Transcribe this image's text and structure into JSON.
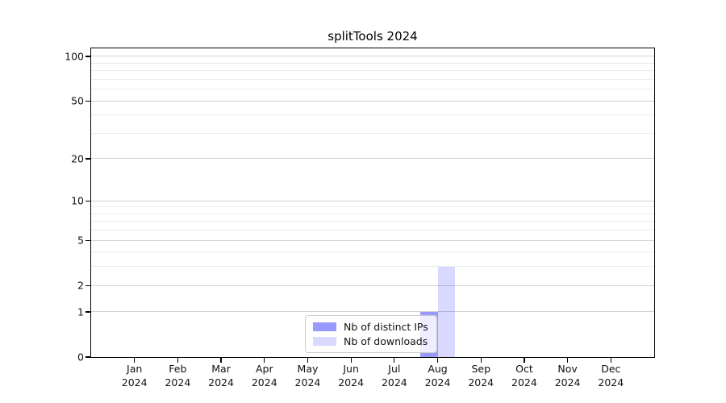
{
  "title": "splitTools 2024",
  "colors": {
    "background": "#ffffff",
    "axis": "#000000",
    "grid_major": "#d2d2d2",
    "grid_minor": "#ececec",
    "legend_border": "#cccccc",
    "bar_distinct_ips": "rgba(0,0,255,0.4)",
    "bar_downloads": "rgba(0,0,255,0.15)"
  },
  "chart_data": {
    "type": "bar",
    "title": "splitTools 2024",
    "categories": [
      "Jan 2024",
      "Feb 2024",
      "Mar 2024",
      "Apr 2024",
      "May 2024",
      "Jun 2024",
      "Jul 2024",
      "Aug 2024",
      "Sep 2024",
      "Oct 2024",
      "Nov 2024",
      "Dec 2024"
    ],
    "series": [
      {
        "name": "Nb of distinct IPs",
        "color": "rgba(0,0,255,0.4)",
        "values": [
          0,
          0,
          0,
          0,
          0,
          0,
          0,
          1,
          0,
          0,
          0,
          0
        ]
      },
      {
        "name": "Nb of downloads",
        "color": "rgba(0,0,255,0.15)",
        "values": [
          0,
          0,
          0,
          0,
          0,
          0,
          0,
          3,
          0,
          0,
          0,
          0
        ]
      }
    ],
    "xlabel": "",
    "ylabel": "",
    "yscale": "log1p",
    "ylim": [
      0,
      113
    ],
    "y_major_ticks": [
      0,
      1,
      2,
      5,
      10,
      20,
      50,
      100
    ],
    "y_minor_ticks": [
      3,
      4,
      6,
      7,
      8,
      9,
      30,
      40,
      60,
      70,
      80,
      90
    ],
    "grid": true,
    "legend_position": "lower center"
  }
}
